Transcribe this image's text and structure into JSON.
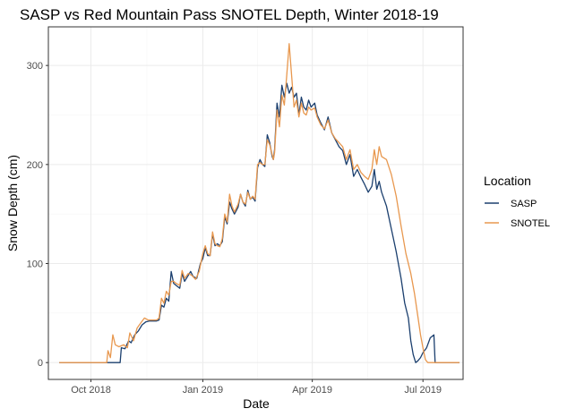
{
  "chart_data": {
    "type": "line",
    "title": "SASP vs Red Mountain Pass SNOTEL Depth, Winter 2018-19",
    "xlabel": "Date",
    "ylabel": "Snow Depth (cm)",
    "xlim": [
      "2018-08-27",
      "2019-08-03"
    ],
    "ylim": [
      -17,
      339
    ],
    "x_ticks": [
      {
        "date": "2018-10-01",
        "label": "Oct 2018"
      },
      {
        "date": "2019-01-01",
        "label": "Jan 2019"
      },
      {
        "date": "2019-04-01",
        "label": "Apr 2019"
      },
      {
        "date": "2019-07-01",
        "label": "Jul 2019"
      }
    ],
    "y_ticks": [
      0,
      100,
      200,
      300
    ],
    "grid": true,
    "legend": {
      "title": "Location",
      "position": "right"
    },
    "series": [
      {
        "name": "SASP",
        "color": "#1b3f6e",
        "points": [
          [
            "2018-09-05",
            0
          ],
          [
            "2018-10-05",
            0
          ],
          [
            "2018-10-15",
            0
          ],
          [
            "2018-10-25",
            0
          ],
          [
            "2018-10-26",
            15
          ],
          [
            "2018-10-29",
            14
          ],
          [
            "2018-11-01",
            22
          ],
          [
            "2018-11-03",
            20
          ],
          [
            "2018-11-06",
            28
          ],
          [
            "2018-11-09",
            32
          ],
          [
            "2018-11-12",
            38
          ],
          [
            "2018-11-15",
            41
          ],
          [
            "2018-11-18",
            42
          ],
          [
            "2018-11-21",
            42
          ],
          [
            "2018-11-24",
            42
          ],
          [
            "2018-11-26",
            43
          ],
          [
            "2018-11-28",
            58
          ],
          [
            "2018-11-30",
            56
          ],
          [
            "2018-12-02",
            65
          ],
          [
            "2018-12-04",
            62
          ],
          [
            "2018-12-06",
            92
          ],
          [
            "2018-12-08",
            80
          ],
          [
            "2018-12-10",
            78
          ],
          [
            "2018-12-13",
            75
          ],
          [
            "2018-12-15",
            90
          ],
          [
            "2018-12-17",
            82
          ],
          [
            "2018-12-20",
            88
          ],
          [
            "2018-12-22",
            92
          ],
          [
            "2018-12-24",
            87
          ],
          [
            "2018-12-27",
            85
          ],
          [
            "2018-12-30",
            100
          ],
          [
            "2019-01-01",
            105
          ],
          [
            "2019-01-03",
            116
          ],
          [
            "2019-01-05",
            108
          ],
          [
            "2019-01-07",
            108
          ],
          [
            "2019-01-09",
            130
          ],
          [
            "2019-01-11",
            118
          ],
          [
            "2019-01-13",
            120
          ],
          [
            "2019-01-15",
            118
          ],
          [
            "2019-01-17",
            122
          ],
          [
            "2019-01-19",
            147
          ],
          [
            "2019-01-21",
            140
          ],
          [
            "2019-01-23",
            162
          ],
          [
            "2019-01-25",
            155
          ],
          [
            "2019-01-27",
            150
          ],
          [
            "2019-01-30",
            157
          ],
          [
            "2019-02-01",
            170
          ],
          [
            "2019-02-03",
            162
          ],
          [
            "2019-02-05",
            158
          ],
          [
            "2019-02-07",
            174
          ],
          [
            "2019-02-09",
            165
          ],
          [
            "2019-02-11",
            167
          ],
          [
            "2019-02-13",
            163
          ],
          [
            "2019-02-15",
            197
          ],
          [
            "2019-02-17",
            205
          ],
          [
            "2019-02-19",
            200
          ],
          [
            "2019-02-21",
            198
          ],
          [
            "2019-02-23",
            230
          ],
          [
            "2019-02-25",
            222
          ],
          [
            "2019-02-27",
            208
          ],
          [
            "2019-02-28",
            205
          ],
          [
            "2019-03-01",
            215
          ],
          [
            "2019-03-03",
            262
          ],
          [
            "2019-03-05",
            248
          ],
          [
            "2019-03-07",
            280
          ],
          [
            "2019-03-09",
            268
          ],
          [
            "2019-03-11",
            282
          ],
          [
            "2019-03-13",
            272
          ],
          [
            "2019-03-15",
            278
          ],
          [
            "2019-03-17",
            268
          ],
          [
            "2019-03-19",
            272
          ],
          [
            "2019-03-21",
            250
          ],
          [
            "2019-03-23",
            268
          ],
          [
            "2019-03-25",
            258
          ],
          [
            "2019-03-27",
            255
          ],
          [
            "2019-03-29",
            265
          ],
          [
            "2019-03-31",
            258
          ],
          [
            "2019-04-03",
            262
          ],
          [
            "2019-04-05",
            250
          ],
          [
            "2019-04-08",
            242
          ],
          [
            "2019-04-11",
            235
          ],
          [
            "2019-04-14",
            248
          ],
          [
            "2019-04-17",
            232
          ],
          [
            "2019-04-20",
            225
          ],
          [
            "2019-04-23",
            218
          ],
          [
            "2019-04-26",
            214
          ],
          [
            "2019-04-29",
            200
          ],
          [
            "2019-05-02",
            210
          ],
          [
            "2019-05-05",
            188
          ],
          [
            "2019-05-08",
            195
          ],
          [
            "2019-05-11",
            187
          ],
          [
            "2019-05-14",
            180
          ],
          [
            "2019-05-17",
            172
          ],
          [
            "2019-05-20",
            178
          ],
          [
            "2019-05-22",
            195
          ],
          [
            "2019-05-24",
            175
          ],
          [
            "2019-05-26",
            183
          ],
          [
            "2019-05-28",
            172
          ],
          [
            "2019-06-01",
            158
          ],
          [
            "2019-06-05",
            135
          ],
          [
            "2019-06-09",
            112
          ],
          [
            "2019-06-13",
            85
          ],
          [
            "2019-06-16",
            60
          ],
          [
            "2019-06-19",
            45
          ],
          [
            "2019-06-21",
            22
          ],
          [
            "2019-06-23",
            8
          ],
          [
            "2019-06-25",
            0
          ],
          [
            "2019-06-27",
            2
          ],
          [
            "2019-06-29",
            5
          ],
          [
            "2019-07-01",
            10
          ],
          [
            "2019-07-04",
            15
          ],
          [
            "2019-07-07",
            25
          ],
          [
            "2019-07-10",
            28
          ],
          [
            "2019-07-11",
            0
          ],
          [
            "2019-07-31",
            0
          ]
        ]
      },
      {
        "name": "SNOTEL",
        "color": "#e8984f",
        "points": [
          [
            "2018-09-05",
            0
          ],
          [
            "2018-10-05",
            0
          ],
          [
            "2018-10-14",
            0
          ],
          [
            "2018-10-15",
            12
          ],
          [
            "2018-10-17",
            5
          ],
          [
            "2018-10-19",
            28
          ],
          [
            "2018-10-21",
            18
          ],
          [
            "2018-10-24",
            16
          ],
          [
            "2018-10-28",
            18
          ],
          [
            "2018-10-31",
            15
          ],
          [
            "2018-11-02",
            30
          ],
          [
            "2018-11-05",
            22
          ],
          [
            "2018-11-08",
            35
          ],
          [
            "2018-11-11",
            40
          ],
          [
            "2018-11-14",
            45
          ],
          [
            "2018-11-17",
            43
          ],
          [
            "2018-11-20",
            43
          ],
          [
            "2018-11-24",
            43
          ],
          [
            "2018-11-26",
            45
          ],
          [
            "2018-11-28",
            65
          ],
          [
            "2018-11-30",
            60
          ],
          [
            "2018-12-02",
            72
          ],
          [
            "2018-12-04",
            68
          ],
          [
            "2018-12-06",
            82
          ],
          [
            "2018-12-08",
            82
          ],
          [
            "2018-12-10",
            80
          ],
          [
            "2018-12-13",
            78
          ],
          [
            "2018-12-15",
            93
          ],
          [
            "2018-12-17",
            85
          ],
          [
            "2018-12-20",
            90
          ],
          [
            "2018-12-23",
            88
          ],
          [
            "2018-12-26",
            84
          ],
          [
            "2018-12-29",
            92
          ],
          [
            "2019-01-01",
            110
          ],
          [
            "2019-01-03",
            118
          ],
          [
            "2019-01-05",
            110
          ],
          [
            "2019-01-07",
            108
          ],
          [
            "2019-01-09",
            132
          ],
          [
            "2019-01-11",
            120
          ],
          [
            "2019-01-13",
            118
          ],
          [
            "2019-01-15",
            117
          ],
          [
            "2019-01-17",
            125
          ],
          [
            "2019-01-19",
            150
          ],
          [
            "2019-01-21",
            142
          ],
          [
            "2019-01-23",
            170
          ],
          [
            "2019-01-25",
            158
          ],
          [
            "2019-01-27",
            152
          ],
          [
            "2019-01-30",
            160
          ],
          [
            "2019-02-01",
            170
          ],
          [
            "2019-02-03",
            162
          ],
          [
            "2019-02-05",
            160
          ],
          [
            "2019-02-07",
            172
          ],
          [
            "2019-02-09",
            165
          ],
          [
            "2019-02-11",
            168
          ],
          [
            "2019-02-13",
            165
          ],
          [
            "2019-02-15",
            200
          ],
          [
            "2019-02-17",
            202
          ],
          [
            "2019-02-19",
            200
          ],
          [
            "2019-02-21",
            200
          ],
          [
            "2019-02-23",
            225
          ],
          [
            "2019-02-25",
            220
          ],
          [
            "2019-02-27",
            210
          ],
          [
            "2019-02-28",
            205
          ],
          [
            "2019-03-01",
            212
          ],
          [
            "2019-03-03",
            255
          ],
          [
            "2019-03-05",
            238
          ],
          [
            "2019-03-07",
            270
          ],
          [
            "2019-03-09",
            260
          ],
          [
            "2019-03-11",
            290
          ],
          [
            "2019-03-13",
            322
          ],
          [
            "2019-03-15",
            290
          ],
          [
            "2019-03-17",
            258
          ],
          [
            "2019-03-19",
            265
          ],
          [
            "2019-03-21",
            248
          ],
          [
            "2019-03-23",
            262
          ],
          [
            "2019-03-25",
            252
          ],
          [
            "2019-03-27",
            250
          ],
          [
            "2019-03-29",
            258
          ],
          [
            "2019-03-31",
            255
          ],
          [
            "2019-04-03",
            257
          ],
          [
            "2019-04-05",
            248
          ],
          [
            "2019-04-08",
            240
          ],
          [
            "2019-04-11",
            236
          ],
          [
            "2019-04-14",
            245
          ],
          [
            "2019-04-17",
            232
          ],
          [
            "2019-04-20",
            226
          ],
          [
            "2019-04-23",
            222
          ],
          [
            "2019-04-26",
            218
          ],
          [
            "2019-04-29",
            205
          ],
          [
            "2019-05-02",
            215
          ],
          [
            "2019-05-05",
            195
          ],
          [
            "2019-05-08",
            200
          ],
          [
            "2019-05-11",
            192
          ],
          [
            "2019-05-14",
            188
          ],
          [
            "2019-05-17",
            185
          ],
          [
            "2019-05-20",
            195
          ],
          [
            "2019-05-22",
            215
          ],
          [
            "2019-05-24",
            200
          ],
          [
            "2019-05-26",
            218
          ],
          [
            "2019-05-28",
            208
          ],
          [
            "2019-06-01",
            205
          ],
          [
            "2019-06-05",
            190
          ],
          [
            "2019-06-09",
            168
          ],
          [
            "2019-06-13",
            138
          ],
          [
            "2019-06-17",
            110
          ],
          [
            "2019-06-21",
            90
          ],
          [
            "2019-06-24",
            70
          ],
          [
            "2019-06-27",
            45
          ],
          [
            "2019-06-29",
            28
          ],
          [
            "2019-07-01",
            15
          ],
          [
            "2019-07-03",
            3
          ],
          [
            "2019-07-05",
            0
          ],
          [
            "2019-07-31",
            0
          ]
        ]
      }
    ]
  }
}
